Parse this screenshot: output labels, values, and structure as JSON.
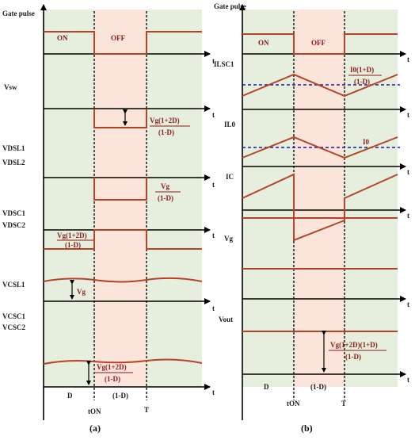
{
  "colors": {
    "on_region": "#e6eedd",
    "off_region": "#fbe5da",
    "waveform": "#b5432a",
    "axis": "#000000",
    "dashed_ref": "#1a1aa0",
    "label_red": "#8b1a1a"
  },
  "panel_a": {
    "caption": "(a)",
    "gate_label": "Gate pulse",
    "on_label": "ON",
    "off_label": "OFF",
    "t": "t",
    "vsw": "Vsw",
    "vsw_frac_num": "Vg(1+2D)",
    "vsw_frac_den": "(1-D)",
    "vdsl1": "VDSL1",
    "vdsl2": "VDSL2",
    "vdsl_frac_num": "Vg",
    "vdsl_frac_den": "(1-D)",
    "vdsc1": "VDSC1",
    "vdsc2": "VDSC2",
    "vdsc_frac_num": "Vg(1+2D)",
    "vdsc_frac_den": "(1-D)",
    "vcsl1": "VCSL1",
    "vcsl_val": "Vg",
    "vcsc1": "VCSC1",
    "vcsc2": "VCSC2",
    "vcsc_frac_num": "Vg(1+2D)",
    "vcsc_frac_den": "(1-D)",
    "d_label": "D",
    "one_minus_d": "(1-D)",
    "ton": "tON",
    "T": "T"
  },
  "panel_b": {
    "caption": "(b)",
    "gate_label": "Gate pulse",
    "on_label": "ON",
    "off_label": "OFF",
    "t": "t",
    "ilsc1": "ILSC1",
    "ilsc_frac_num": "I0(1+D)",
    "ilsc_frac_den": "(1-D)",
    "il0": "IL0",
    "i0": "I0",
    "ic": "IC",
    "vg": "Vg",
    "vout": "Vout",
    "vout_frac_num": "Vg(1+2D)(1+D)",
    "vout_frac_den": "(1-D)",
    "d_label": "D",
    "one_minus_d": "(1-D)",
    "ton": "tON",
    "T": "T"
  }
}
